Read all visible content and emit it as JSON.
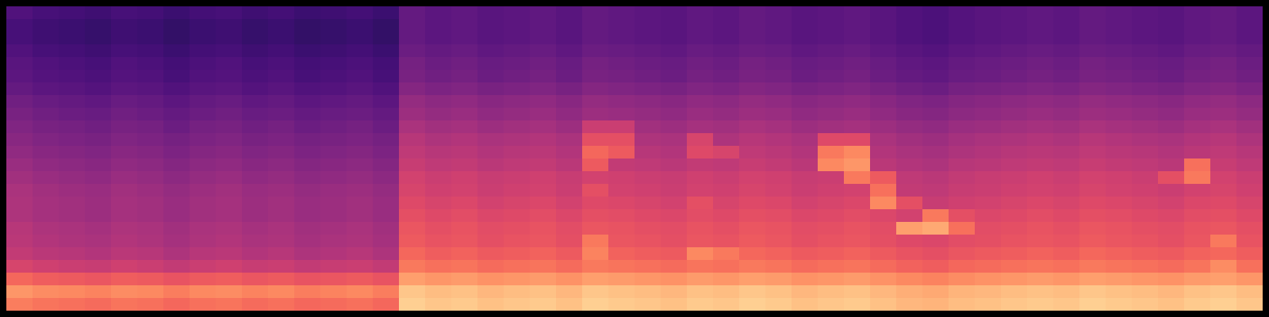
{
  "chart_data": {
    "type": "heatmap",
    "color": "magma",
    "tick_labels": false,
    "color_range": [
      0,
      1
    ],
    "cells": [
      [
        0.25,
        0.23,
        0.22,
        0.21,
        0.23,
        0.22,
        0.2,
        0.22,
        0.23,
        0.21,
        0.22,
        0.2,
        0.21,
        0.22,
        0.2,
        0.3,
        0.28,
        0.29,
        0.27,
        0.28,
        0.29,
        0.27,
        0.3,
        0.29,
        0.28,
        0.27,
        0.29,
        0.28,
        0.3,
        0.29,
        0.27,
        0.28,
        0.29,
        0.27,
        0.25,
        0.24,
        0.26,
        0.27,
        0.28,
        0.29,
        0.28,
        0.3,
        0.29,
        0.28,
        0.27,
        0.29,
        0.3,
        0.28
      ],
      [
        0.23,
        0.21,
        0.2,
        0.19,
        0.21,
        0.2,
        0.18,
        0.2,
        0.21,
        0.19,
        0.2,
        0.18,
        0.19,
        0.2,
        0.18,
        0.3,
        0.28,
        0.29,
        0.27,
        0.28,
        0.29,
        0.27,
        0.3,
        0.29,
        0.28,
        0.27,
        0.29,
        0.28,
        0.3,
        0.29,
        0.27,
        0.28,
        0.29,
        0.27,
        0.25,
        0.24,
        0.26,
        0.27,
        0.28,
        0.29,
        0.28,
        0.3,
        0.29,
        0.28,
        0.27,
        0.29,
        0.3,
        0.28
      ],
      [
        0.23,
        0.21,
        0.2,
        0.19,
        0.21,
        0.2,
        0.18,
        0.2,
        0.21,
        0.19,
        0.2,
        0.18,
        0.19,
        0.2,
        0.18,
        0.3,
        0.28,
        0.29,
        0.27,
        0.28,
        0.29,
        0.27,
        0.3,
        0.29,
        0.28,
        0.27,
        0.29,
        0.28,
        0.3,
        0.29,
        0.27,
        0.28,
        0.29,
        0.27,
        0.25,
        0.24,
        0.26,
        0.27,
        0.28,
        0.29,
        0.28,
        0.3,
        0.29,
        0.28,
        0.27,
        0.29,
        0.3,
        0.28
      ],
      [
        0.25,
        0.23,
        0.22,
        0.21,
        0.23,
        0.22,
        0.2,
        0.22,
        0.23,
        0.21,
        0.22,
        0.2,
        0.21,
        0.22,
        0.2,
        0.32,
        0.3,
        0.31,
        0.29,
        0.3,
        0.31,
        0.29,
        0.32,
        0.31,
        0.3,
        0.29,
        0.31,
        0.3,
        0.32,
        0.31,
        0.29,
        0.3,
        0.31,
        0.29,
        0.27,
        0.26,
        0.28,
        0.29,
        0.3,
        0.31,
        0.3,
        0.32,
        0.31,
        0.3,
        0.29,
        0.31,
        0.32,
        0.3
      ],
      [
        0.27,
        0.25,
        0.24,
        0.23,
        0.25,
        0.24,
        0.22,
        0.24,
        0.25,
        0.23,
        0.24,
        0.22,
        0.23,
        0.24,
        0.22,
        0.34,
        0.32,
        0.33,
        0.31,
        0.32,
        0.33,
        0.31,
        0.34,
        0.33,
        0.32,
        0.31,
        0.33,
        0.32,
        0.34,
        0.33,
        0.31,
        0.32,
        0.33,
        0.31,
        0.29,
        0.28,
        0.3,
        0.31,
        0.32,
        0.33,
        0.32,
        0.34,
        0.33,
        0.32,
        0.31,
        0.33,
        0.34,
        0.32
      ],
      [
        0.28,
        0.26,
        0.25,
        0.24,
        0.26,
        0.25,
        0.23,
        0.25,
        0.26,
        0.24,
        0.25,
        0.23,
        0.24,
        0.25,
        0.23,
        0.35,
        0.33,
        0.34,
        0.32,
        0.33,
        0.34,
        0.32,
        0.35,
        0.34,
        0.33,
        0.32,
        0.34,
        0.33,
        0.35,
        0.34,
        0.32,
        0.33,
        0.34,
        0.32,
        0.3,
        0.29,
        0.31,
        0.32,
        0.33,
        0.34,
        0.33,
        0.35,
        0.34,
        0.33,
        0.32,
        0.34,
        0.35,
        0.33
      ],
      [
        0.3,
        0.28,
        0.27,
        0.26,
        0.28,
        0.27,
        0.25,
        0.27,
        0.28,
        0.26,
        0.27,
        0.25,
        0.26,
        0.27,
        0.25,
        0.38,
        0.36,
        0.37,
        0.35,
        0.36,
        0.37,
        0.35,
        0.38,
        0.37,
        0.36,
        0.35,
        0.37,
        0.36,
        0.38,
        0.37,
        0.35,
        0.36,
        0.37,
        0.35,
        0.33,
        0.32,
        0.34,
        0.35,
        0.36,
        0.37,
        0.36,
        0.38,
        0.37,
        0.36,
        0.35,
        0.37,
        0.38,
        0.36
      ],
      [
        0.33,
        0.31,
        0.3,
        0.29,
        0.31,
        0.3,
        0.28,
        0.3,
        0.31,
        0.29,
        0.3,
        0.28,
        0.29,
        0.3,
        0.28,
        0.42,
        0.4,
        0.41,
        0.39,
        0.4,
        0.41,
        0.39,
        0.42,
        0.41,
        0.4,
        0.39,
        0.41,
        0.4,
        0.42,
        0.41,
        0.39,
        0.4,
        0.41,
        0.39,
        0.37,
        0.36,
        0.38,
        0.39,
        0.4,
        0.41,
        0.4,
        0.42,
        0.41,
        0.4,
        0.39,
        0.41,
        0.42,
        0.4
      ],
      [
        0.35,
        0.33,
        0.32,
        0.31,
        0.33,
        0.32,
        0.3,
        0.32,
        0.33,
        0.31,
        0.32,
        0.3,
        0.31,
        0.32,
        0.3,
        0.44,
        0.42,
        0.43,
        0.41,
        0.42,
        0.43,
        0.41,
        0.44,
        0.43,
        0.42,
        0.41,
        0.43,
        0.42,
        0.44,
        0.43,
        0.41,
        0.42,
        0.43,
        0.41,
        0.39,
        0.38,
        0.4,
        0.41,
        0.42,
        0.43,
        0.42,
        0.44,
        0.43,
        0.42,
        0.41,
        0.43,
        0.44,
        0.42
      ],
      [
        0.37,
        0.35,
        0.34,
        0.33,
        0.35,
        0.34,
        0.32,
        0.34,
        0.35,
        0.33,
        0.34,
        0.32,
        0.33,
        0.34,
        0.32,
        0.47,
        0.45,
        0.46,
        0.44,
        0.45,
        0.46,
        0.44,
        0.55,
        0.55,
        0.45,
        0.44,
        0.46,
        0.45,
        0.47,
        0.46,
        0.44,
        0.45,
        0.46,
        0.44,
        0.42,
        0.41,
        0.43,
        0.44,
        0.45,
        0.46,
        0.45,
        0.47,
        0.46,
        0.45,
        0.44,
        0.46,
        0.47,
        0.45
      ],
      [
        0.39,
        0.37,
        0.36,
        0.35,
        0.37,
        0.36,
        0.34,
        0.36,
        0.37,
        0.35,
        0.36,
        0.34,
        0.35,
        0.36,
        0.34,
        0.5,
        0.48,
        0.49,
        0.47,
        0.48,
        0.49,
        0.47,
        0.62,
        0.62,
        0.48,
        0.47,
        0.58,
        0.48,
        0.5,
        0.49,
        0.47,
        0.6,
        0.6,
        0.47,
        0.45,
        0.44,
        0.46,
        0.47,
        0.48,
        0.49,
        0.48,
        0.5,
        0.49,
        0.48,
        0.47,
        0.49,
        0.5,
        0.48
      ],
      [
        0.41,
        0.39,
        0.38,
        0.37,
        0.39,
        0.38,
        0.36,
        0.38,
        0.39,
        0.37,
        0.38,
        0.36,
        0.37,
        0.38,
        0.36,
        0.52,
        0.5,
        0.51,
        0.49,
        0.5,
        0.51,
        0.49,
        0.68,
        0.65,
        0.5,
        0.49,
        0.6,
        0.58,
        0.52,
        0.51,
        0.49,
        0.72,
        0.75,
        0.49,
        0.47,
        0.46,
        0.48,
        0.49,
        0.5,
        0.51,
        0.5,
        0.52,
        0.51,
        0.5,
        0.49,
        0.51,
        0.52,
        0.5
      ],
      [
        0.43,
        0.41,
        0.4,
        0.39,
        0.41,
        0.4,
        0.38,
        0.4,
        0.41,
        0.39,
        0.4,
        0.38,
        0.39,
        0.4,
        0.38,
        0.54,
        0.52,
        0.53,
        0.51,
        0.52,
        0.53,
        0.51,
        0.65,
        0.53,
        0.52,
        0.51,
        0.53,
        0.52,
        0.54,
        0.53,
        0.51,
        0.75,
        0.78,
        0.51,
        0.49,
        0.48,
        0.5,
        0.51,
        0.52,
        0.53,
        0.52,
        0.54,
        0.53,
        0.52,
        0.51,
        0.7,
        0.54,
        0.52
      ],
      [
        0.45,
        0.43,
        0.42,
        0.41,
        0.43,
        0.42,
        0.4,
        0.42,
        0.43,
        0.41,
        0.42,
        0.4,
        0.41,
        0.42,
        0.4,
        0.57,
        0.55,
        0.56,
        0.54,
        0.55,
        0.56,
        0.54,
        0.57,
        0.56,
        0.55,
        0.54,
        0.56,
        0.55,
        0.57,
        0.56,
        0.54,
        0.55,
        0.72,
        0.65,
        0.52,
        0.51,
        0.53,
        0.54,
        0.55,
        0.56,
        0.55,
        0.57,
        0.56,
        0.55,
        0.62,
        0.72,
        0.57,
        0.55
      ],
      [
        0.47,
        0.45,
        0.44,
        0.43,
        0.45,
        0.44,
        0.42,
        0.44,
        0.45,
        0.43,
        0.44,
        0.42,
        0.43,
        0.44,
        0.42,
        0.58,
        0.56,
        0.57,
        0.55,
        0.56,
        0.57,
        0.55,
        0.62,
        0.57,
        0.56,
        0.55,
        0.57,
        0.56,
        0.58,
        0.57,
        0.55,
        0.56,
        0.57,
        0.7,
        0.53,
        0.52,
        0.54,
        0.55,
        0.56,
        0.57,
        0.56,
        0.58,
        0.57,
        0.56,
        0.55,
        0.57,
        0.58,
        0.56
      ],
      [
        0.48,
        0.46,
        0.45,
        0.44,
        0.46,
        0.45,
        0.43,
        0.45,
        0.46,
        0.44,
        0.45,
        0.43,
        0.44,
        0.45,
        0.43,
        0.6,
        0.58,
        0.59,
        0.57,
        0.58,
        0.59,
        0.57,
        0.6,
        0.59,
        0.58,
        0.57,
        0.62,
        0.58,
        0.6,
        0.59,
        0.57,
        0.58,
        0.59,
        0.75,
        0.62,
        0.54,
        0.56,
        0.57,
        0.58,
        0.59,
        0.58,
        0.6,
        0.59,
        0.58,
        0.57,
        0.59,
        0.6,
        0.58
      ],
      [
        0.48,
        0.46,
        0.45,
        0.44,
        0.46,
        0.45,
        0.43,
        0.45,
        0.46,
        0.44,
        0.45,
        0.43,
        0.44,
        0.45,
        0.43,
        0.62,
        0.6,
        0.61,
        0.59,
        0.6,
        0.61,
        0.59,
        0.62,
        0.61,
        0.6,
        0.59,
        0.61,
        0.6,
        0.62,
        0.61,
        0.59,
        0.6,
        0.61,
        0.59,
        0.57,
        0.72,
        0.62,
        0.59,
        0.6,
        0.61,
        0.6,
        0.62,
        0.61,
        0.6,
        0.59,
        0.61,
        0.62,
        0.6
      ],
      [
        0.5,
        0.48,
        0.47,
        0.46,
        0.48,
        0.47,
        0.45,
        0.47,
        0.48,
        0.46,
        0.47,
        0.45,
        0.46,
        0.47,
        0.45,
        0.64,
        0.62,
        0.63,
        0.61,
        0.62,
        0.63,
        0.61,
        0.64,
        0.63,
        0.62,
        0.61,
        0.63,
        0.62,
        0.64,
        0.63,
        0.61,
        0.62,
        0.63,
        0.61,
        0.8,
        0.82,
        0.7,
        0.61,
        0.62,
        0.63,
        0.62,
        0.64,
        0.63,
        0.62,
        0.61,
        0.63,
        0.64,
        0.62
      ],
      [
        0.51,
        0.49,
        0.48,
        0.47,
        0.49,
        0.48,
        0.46,
        0.48,
        0.49,
        0.47,
        0.48,
        0.46,
        0.47,
        0.48,
        0.46,
        0.65,
        0.63,
        0.64,
        0.62,
        0.63,
        0.64,
        0.62,
        0.72,
        0.64,
        0.63,
        0.62,
        0.64,
        0.63,
        0.65,
        0.64,
        0.62,
        0.63,
        0.64,
        0.62,
        0.6,
        0.59,
        0.61,
        0.62,
        0.63,
        0.64,
        0.63,
        0.65,
        0.64,
        0.63,
        0.62,
        0.64,
        0.72,
        0.63
      ],
      [
        0.53,
        0.51,
        0.5,
        0.49,
        0.51,
        0.5,
        0.48,
        0.5,
        0.51,
        0.49,
        0.5,
        0.48,
        0.49,
        0.5,
        0.48,
        0.68,
        0.66,
        0.67,
        0.65,
        0.66,
        0.67,
        0.65,
        0.74,
        0.67,
        0.66,
        0.65,
        0.75,
        0.72,
        0.68,
        0.67,
        0.65,
        0.66,
        0.67,
        0.65,
        0.63,
        0.62,
        0.64,
        0.65,
        0.66,
        0.67,
        0.66,
        0.68,
        0.67,
        0.66,
        0.65,
        0.67,
        0.68,
        0.66
      ],
      [
        0.58,
        0.56,
        0.55,
        0.54,
        0.56,
        0.55,
        0.53,
        0.55,
        0.56,
        0.54,
        0.55,
        0.53,
        0.54,
        0.55,
        0.53,
        0.72,
        0.7,
        0.71,
        0.69,
        0.7,
        0.71,
        0.69,
        0.72,
        0.71,
        0.7,
        0.69,
        0.71,
        0.7,
        0.72,
        0.71,
        0.69,
        0.7,
        0.71,
        0.69,
        0.67,
        0.66,
        0.68,
        0.69,
        0.7,
        0.71,
        0.7,
        0.72,
        0.71,
        0.7,
        0.69,
        0.71,
        0.76,
        0.7
      ],
      [
        0.68,
        0.66,
        0.65,
        0.64,
        0.66,
        0.65,
        0.63,
        0.65,
        0.66,
        0.64,
        0.65,
        0.63,
        0.64,
        0.65,
        0.63,
        0.8,
        0.78,
        0.79,
        0.77,
        0.78,
        0.79,
        0.77,
        0.8,
        0.79,
        0.78,
        0.77,
        0.79,
        0.78,
        0.8,
        0.79,
        0.77,
        0.78,
        0.79,
        0.77,
        0.75,
        0.74,
        0.76,
        0.77,
        0.78,
        0.79,
        0.78,
        0.8,
        0.79,
        0.78,
        0.77,
        0.79,
        0.8,
        0.78
      ],
      [
        0.78,
        0.76,
        0.75,
        0.74,
        0.76,
        0.75,
        0.73,
        0.75,
        0.76,
        0.74,
        0.75,
        0.73,
        0.74,
        0.75,
        0.73,
        0.88,
        0.86,
        0.87,
        0.85,
        0.86,
        0.87,
        0.85,
        0.88,
        0.87,
        0.86,
        0.85,
        0.87,
        0.86,
        0.88,
        0.87,
        0.85,
        0.86,
        0.87,
        0.85,
        0.83,
        0.82,
        0.84,
        0.85,
        0.86,
        0.87,
        0.86,
        0.88,
        0.87,
        0.86,
        0.85,
        0.87,
        0.88,
        0.86
      ],
      [
        0.73,
        0.71,
        0.7,
        0.69,
        0.71,
        0.7,
        0.68,
        0.7,
        0.71,
        0.69,
        0.7,
        0.68,
        0.69,
        0.7,
        0.68,
        0.9,
        0.88,
        0.89,
        0.87,
        0.88,
        0.89,
        0.87,
        0.9,
        0.89,
        0.88,
        0.87,
        0.89,
        0.88,
        0.9,
        0.89,
        0.87,
        0.88,
        0.89,
        0.87,
        0.85,
        0.84,
        0.86,
        0.87,
        0.88,
        0.89,
        0.88,
        0.9,
        0.89,
        0.88,
        0.87,
        0.89,
        0.9,
        0.88
      ]
    ]
  }
}
